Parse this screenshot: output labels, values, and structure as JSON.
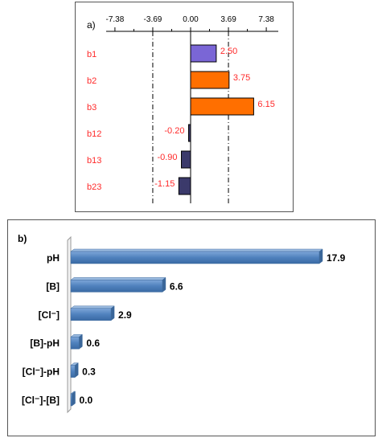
{
  "chart_data": [
    {
      "panel_label": "a)",
      "type": "bar",
      "orientation": "horizontal",
      "title": "",
      "xlabel": "",
      "ylabel": "",
      "categories": [
        "b1",
        "b2",
        "b3",
        "b12",
        "b13",
        "b23"
      ],
      "values": [
        2.5,
        3.75,
        6.15,
        -0.2,
        -0.9,
        -1.15
      ],
      "value_labels": [
        "2.50",
        "3.75",
        "6.15",
        "-0.20",
        "-0.90",
        "-1.15"
      ],
      "bar_colors": [
        "#7a66d6",
        "#ff6f00",
        "#ff6f00",
        "#3b3a6b",
        "#3b3a6b",
        "#3b3a6b"
      ],
      "tick_values": [
        -7.38,
        -3.69,
        0.0,
        3.69,
        7.38
      ],
      "tick_labels": [
        "-7.38",
        "-3.69",
        "0.00",
        "3.69",
        "7.38"
      ],
      "xlim": [
        -7.38,
        7.38
      ],
      "reference_lines": [
        -3.69,
        3.69
      ],
      "tick_axis_position": "top",
      "label_color": "#ff2a2a"
    },
    {
      "panel_label": "b)",
      "type": "bar",
      "orientation": "horizontal",
      "style": "3d",
      "title": "",
      "xlabel": "",
      "ylabel": "",
      "categories": [
        "pH",
        "[B]",
        "[Cl⁻]",
        "[B]-pH",
        "[Cl⁻]-pH",
        "[Cl⁻]-[B]"
      ],
      "values": [
        17.9,
        6.6,
        2.9,
        0.6,
        0.3,
        0.0
      ],
      "value_labels": [
        "17.9",
        "6.6",
        "2.9",
        "0.6",
        "0.3",
        "0.0"
      ],
      "bar_color": "#4f81bd",
      "xlim": [
        0,
        17.9
      ]
    }
  ]
}
